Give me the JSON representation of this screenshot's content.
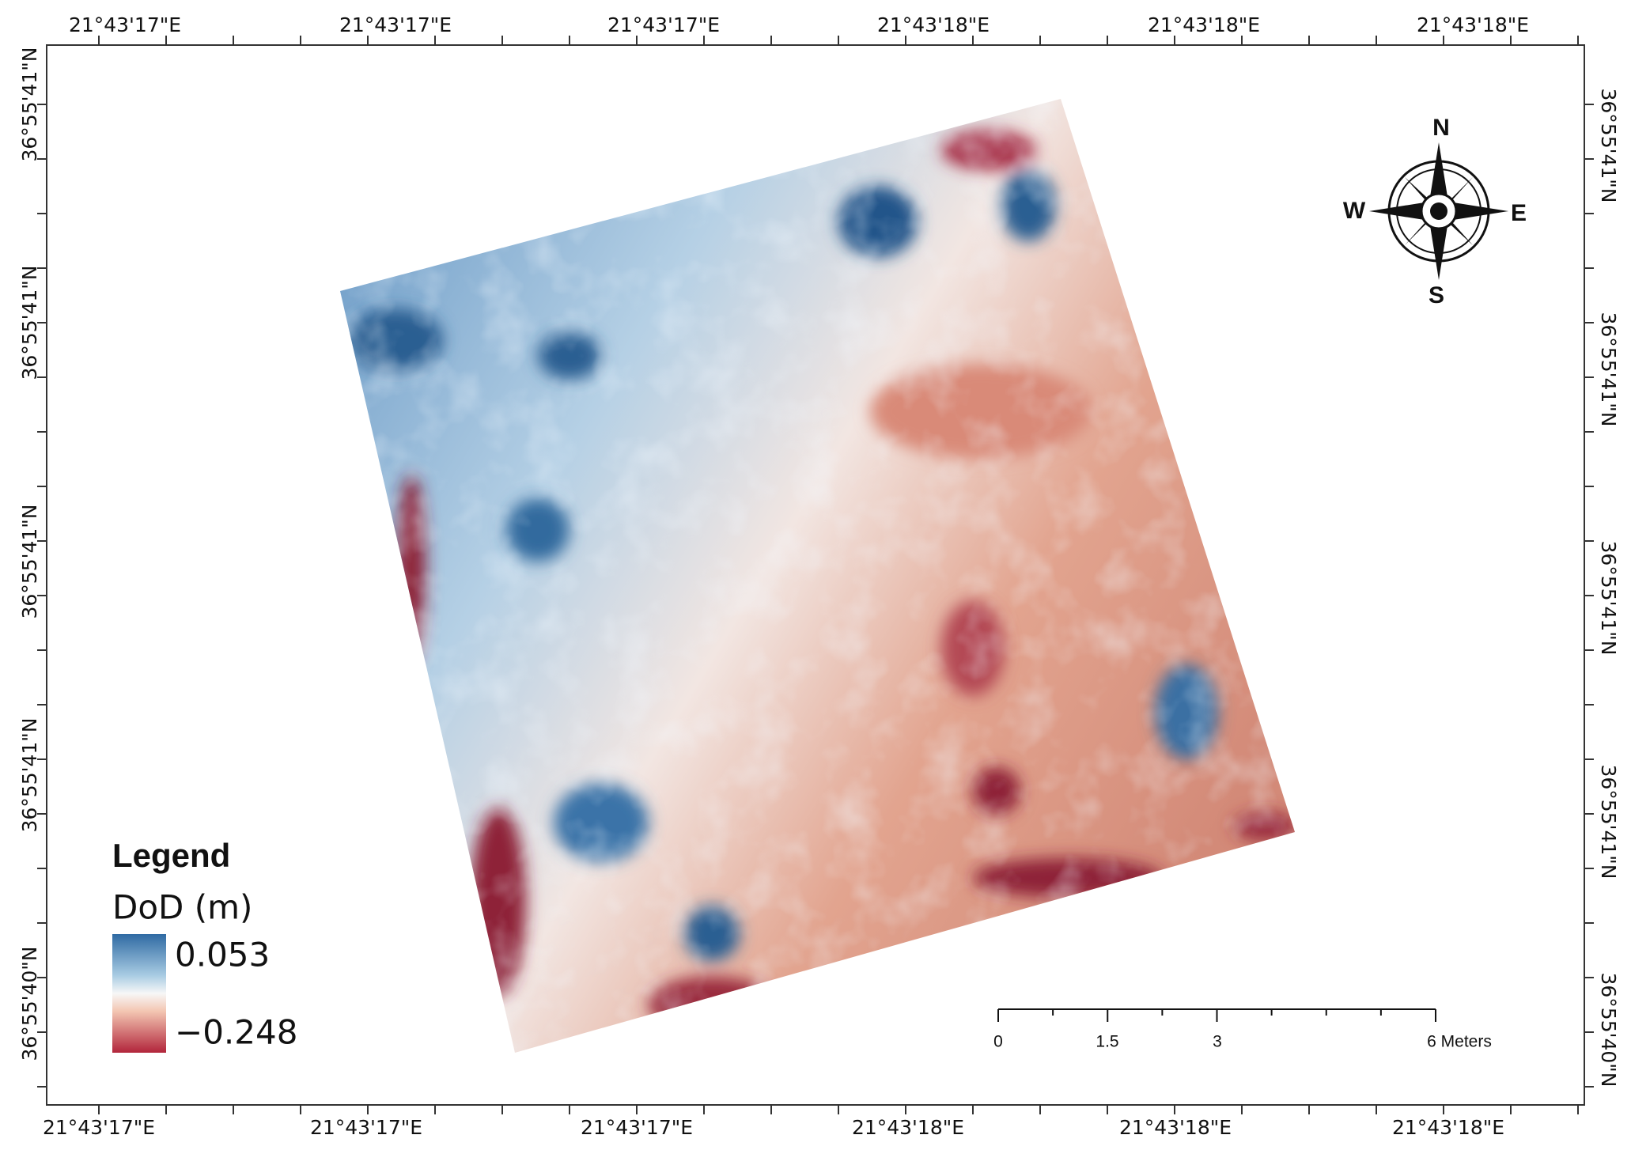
{
  "map": {
    "top_labels": [
      "21°43'17\"E",
      "21°43'17\"E",
      "21°43'17\"E",
      "21°43'18\"E",
      "21°43'18\"E",
      "21°43'18\"E"
    ],
    "bottom_labels": [
      "21°43'17\"E",
      "21°43'17\"E",
      "21°43'17\"E",
      "21°43'18\"E",
      "21°43'18\"E",
      "21°43'18\"E"
    ],
    "left_labels": [
      "36°55'41\"N",
      "36°55'41\"N",
      "36°55'41\"N",
      "36°55'41\"N",
      "36°55'40\"N"
    ],
    "right_labels": [
      "36°55'41\"N",
      "36°55'41\"N",
      "36°55'41\"N",
      "36°55'41\"N",
      "36°55'40\"N"
    ],
    "compass": {
      "n": "N",
      "s": "S",
      "e": "E",
      "w": "W"
    },
    "legend": {
      "title": "Legend",
      "layer": "DoD (m)",
      "max": "0.053",
      "min": "−0.248"
    },
    "scale_bar": {
      "labels": [
        "0",
        "1.5",
        "3",
        "6 Meters"
      ]
    }
  }
}
